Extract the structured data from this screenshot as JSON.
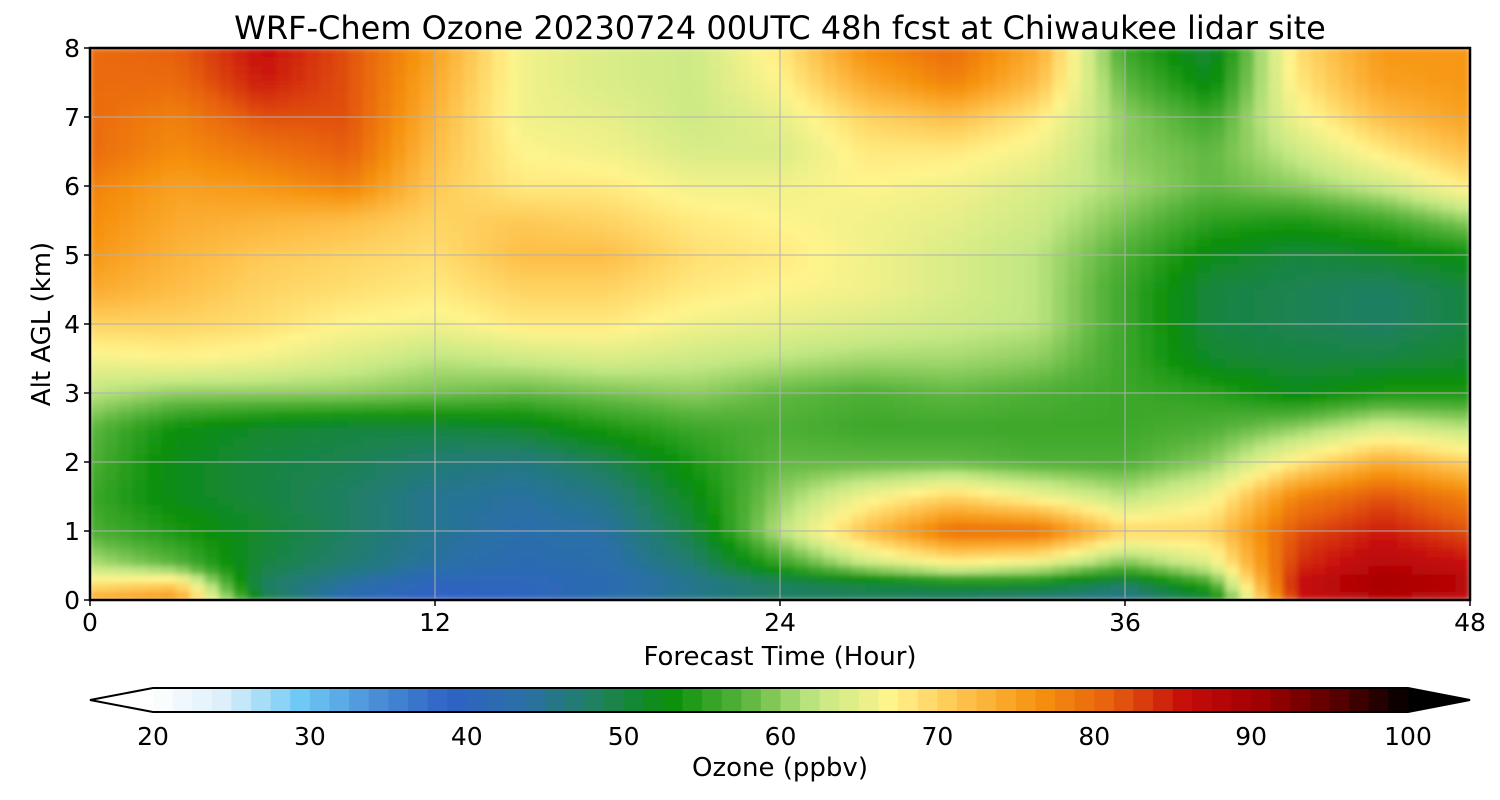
{
  "chart_data": {
    "type": "heatmap",
    "title": "WRF-Chem Ozone  20230724 00UTC 48h fcst at Chiwaukee lidar site",
    "xlabel": "Forecast Time (Hour)",
    "ylabel": "Alt AGL (km)",
    "xlim": [
      0,
      48
    ],
    "ylim": [
      0,
      8
    ],
    "xticks": [
      0,
      12,
      24,
      36,
      48
    ],
    "yticks": [
      0,
      1,
      2,
      3,
      4,
      5,
      6,
      7,
      8
    ],
    "grid": true,
    "x": [
      0,
      3,
      6,
      9,
      12,
      15,
      18,
      21,
      24,
      27,
      30,
      33,
      36,
      39,
      42,
      45,
      48
    ],
    "y": [
      0,
      0.25,
      0.5,
      1,
      1.5,
      2,
      2.5,
      3,
      3.5,
      4,
      4.5,
      5,
      5.5,
      6,
      6.5,
      7,
      7.5,
      8
    ],
    "z": [
      [
        75,
        77,
        50,
        42,
        38,
        40,
        43,
        46,
        48,
        48,
        47,
        46,
        45,
        50,
        85,
        88,
        86
      ],
      [
        68,
        70,
        48,
        44,
        40,
        40,
        42,
        45,
        48,
        50,
        52,
        52,
        48,
        56,
        86,
        90,
        88
      ],
      [
        62,
        58,
        50,
        47,
        44,
        42,
        43,
        47,
        55,
        62,
        66,
        64,
        58,
        64,
        84,
        88,
        86
      ],
      [
        57,
        54,
        51,
        48,
        45,
        43,
        44,
        50,
        62,
        72,
        80,
        80,
        70,
        70,
        82,
        85,
        82
      ],
      [
        56,
        52,
        50,
        48,
        45,
        44,
        46,
        52,
        60,
        66,
        70,
        66,
        62,
        66,
        78,
        82,
        78
      ],
      [
        57,
        52,
        50,
        49,
        47,
        46,
        49,
        54,
        58,
        58,
        58,
        57,
        57,
        60,
        68,
        74,
        70
      ],
      [
        58,
        53,
        51,
        50,
        50,
        51,
        54,
        56,
        57,
        56,
        56,
        56,
        56,
        57,
        60,
        64,
        62
      ],
      [
        62,
        60,
        60,
        60,
        59,
        58,
        59,
        60,
        58,
        57,
        58,
        57,
        56,
        55,
        52,
        54,
        54
      ],
      [
        66,
        67,
        66,
        64,
        62,
        63,
        64,
        63,
        62,
        61,
        61,
        60,
        56,
        51,
        50,
        50,
        51
      ],
      [
        70,
        70,
        69,
        67,
        66,
        68,
        68,
        66,
        65,
        64,
        63,
        62,
        56,
        50,
        49,
        48,
        50
      ],
      [
        74,
        72,
        70,
        69,
        68,
        70,
        70,
        68,
        67,
        66,
        64,
        62,
        56,
        50,
        49,
        48,
        50
      ],
      [
        76,
        73,
        71,
        70,
        69,
        72,
        72,
        69,
        68,
        66,
        64,
        62,
        57,
        52,
        50,
        51,
        53
      ],
      [
        77,
        74,
        73,
        72,
        70,
        71,
        70,
        68,
        67,
        66,
        65,
        63,
        59,
        55,
        54,
        56,
        60
      ],
      [
        78,
        75,
        76,
        78,
        71,
        68,
        68,
        66,
        66,
        67,
        66,
        64,
        61,
        58,
        60,
        63,
        68
      ],
      [
        80,
        77,
        79,
        81,
        72,
        67,
        66,
        64,
        64,
        68,
        68,
        66,
        60,
        58,
        63,
        68,
        72
      ],
      [
        80,
        78,
        82,
        82,
        73,
        66,
        65,
        63,
        65,
        70,
        72,
        68,
        60,
        56,
        66,
        72,
        75
      ],
      [
        80,
        80,
        85,
        82,
        74,
        66,
        64,
        63,
        67,
        74,
        78,
        72,
        58,
        52,
        68,
        75,
        76
      ],
      [
        80,
        81,
        86,
        82,
        75,
        66,
        64,
        63,
        68,
        77,
        80,
        74,
        56,
        50,
        69,
        76,
        76
      ]
    ],
    "colorbar": {
      "label": "Ozone  (ppbv)",
      "min": 20,
      "max": 100,
      "ticks": [
        20,
        30,
        40,
        50,
        60,
        70,
        80,
        90,
        100
      ],
      "extend": "both",
      "colors": [
        "#ffffff",
        "#d9eefb",
        "#6ec9f5",
        "#4a8fd8",
        "#2f62c4",
        "#2a6fa8",
        "#1f8060",
        "#0a8f0a",
        "#58b43c",
        "#c4e884",
        "#fff48c",
        "#fec04a",
        "#f6920f",
        "#e65e0e",
        "#c60b0b",
        "#a00000",
        "#5a0000",
        "#000000"
      ]
    }
  }
}
